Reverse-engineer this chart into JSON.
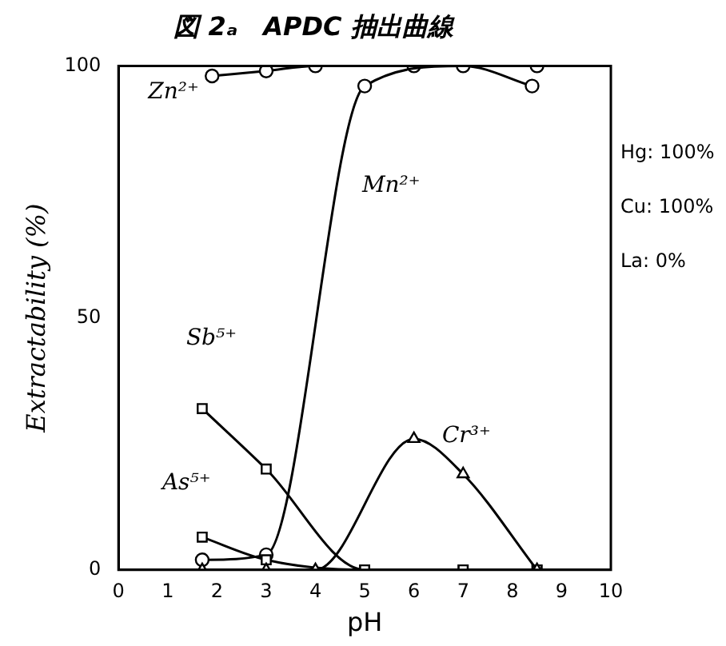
{
  "chart_data": {
    "type": "line",
    "title": "図 2ₐ　APDC 抽出曲線",
    "xlabel": "pH",
    "ylabel": "Extractability (%)",
    "xlim": [
      0,
      10
    ],
    "xticks": [
      0,
      1,
      2,
      3,
      4,
      5,
      6,
      7,
      8,
      9,
      10
    ],
    "ylim": [
      0,
      100
    ],
    "yticks": [
      0,
      50,
      100
    ],
    "grid": false,
    "legend": false,
    "annotations": [
      "Hg: 100%",
      "Cu: 100%",
      "La: 0%"
    ],
    "series": [
      {
        "name": "Zn²⁺",
        "color": "#000000",
        "marker": "circle",
        "x": [
          1.9,
          3,
          4,
          6,
          8.5
        ],
        "values": [
          98,
          99,
          100,
          100,
          100
        ]
      },
      {
        "name": "Mn²⁺",
        "color": "#000000",
        "marker": "circle",
        "x": [
          1.7,
          3,
          5,
          7,
          8.4
        ],
        "values": [
          2,
          3,
          96,
          100,
          96
        ]
      },
      {
        "name": "Sb⁵⁺",
        "color": "#000000",
        "marker": "square",
        "x": [
          1.7,
          3,
          5,
          7,
          8.5
        ],
        "values": [
          32,
          20,
          0,
          0,
          0
        ]
      },
      {
        "name": "As⁵⁺",
        "color": "#000000",
        "marker": "square",
        "x": [
          1.7,
          3,
          5,
          7,
          8.5
        ],
        "values": [
          6.5,
          2,
          0,
          0,
          0
        ]
      },
      {
        "name": "Cr³⁺",
        "color": "#000000",
        "marker": "triangle",
        "x": [
          1.7,
          3,
          4,
          6,
          7,
          8.5
        ],
        "values": [
          0,
          0,
          0,
          26,
          19,
          0
        ]
      }
    ]
  }
}
